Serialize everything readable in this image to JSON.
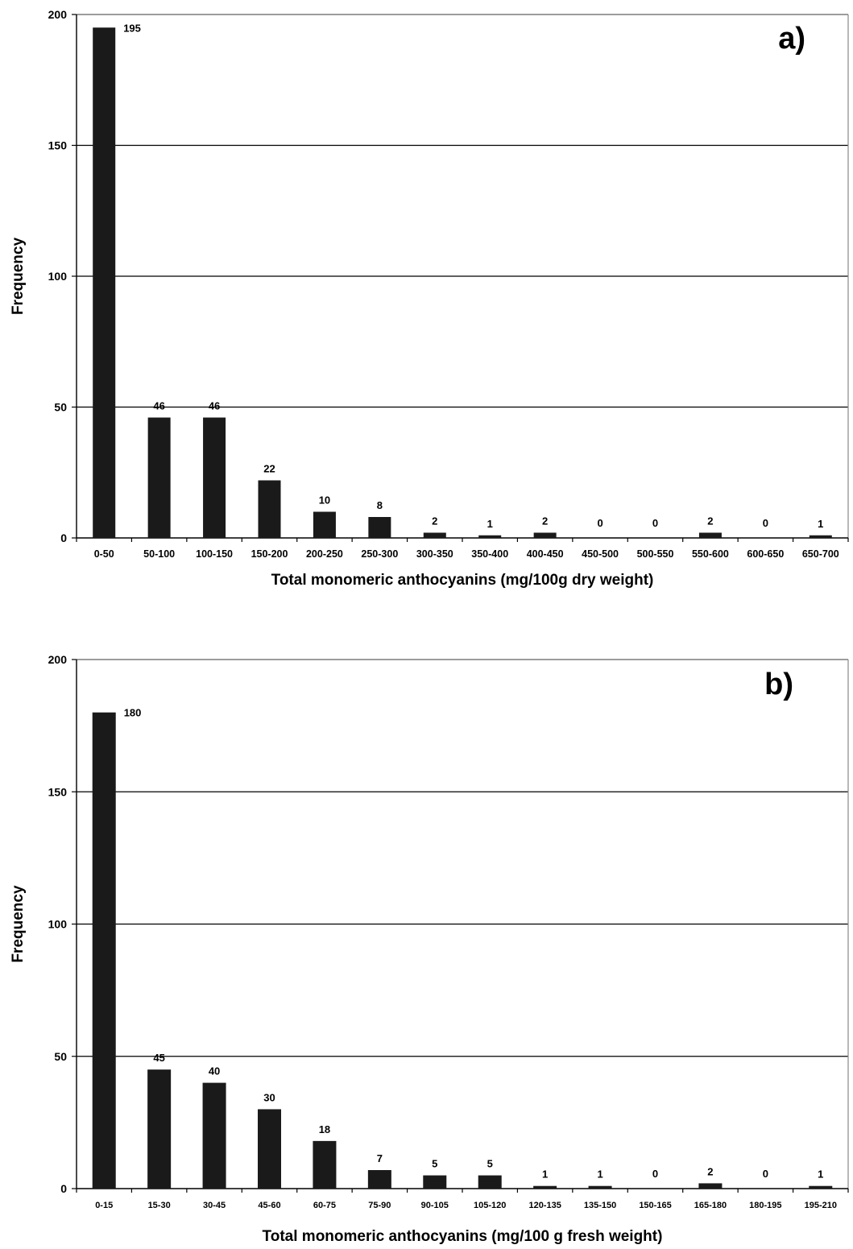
{
  "chart_data": [
    {
      "type": "bar",
      "panel_label": "a)",
      "title": "",
      "xlabel": "Total monomeric anthocyanins (mg/100g dry weight)",
      "ylabel": "Frequency",
      "ylim": [
        0,
        200
      ],
      "yticks": [
        0,
        50,
        100,
        150,
        200
      ],
      "grid": true,
      "bar_color": "#1a1a1a",
      "categories": [
        "0-50",
        "50-100",
        "100-150",
        "150-200",
        "200-250",
        "250-300",
        "300-350",
        "350-400",
        "400-450",
        "450-500",
        "500-550",
        "550-600",
        "600-650",
        "650-700"
      ],
      "values": [
        195,
        46,
        46,
        22,
        10,
        8,
        2,
        1,
        2,
        0,
        0,
        2,
        0,
        1
      ]
    },
    {
      "type": "bar",
      "panel_label": "b)",
      "title": "",
      "xlabel": "Total monomeric anthocyanins (mg/100 g fresh weight)",
      "ylabel": "Frequency",
      "ylim": [
        0,
        200
      ],
      "yticks": [
        0,
        50,
        100,
        150,
        200
      ],
      "grid": true,
      "bar_color": "#1a1a1a",
      "categories": [
        "0-15",
        "15-30",
        "30-45",
        "45-60",
        "60-75",
        "75-90",
        "90-105",
        "105-120",
        "120-135",
        "135-150",
        "150-165",
        "165-180",
        "180-195",
        "195-210"
      ],
      "values": [
        180,
        45,
        40,
        30,
        18,
        7,
        5,
        5,
        1,
        1,
        0,
        2,
        0,
        1
      ]
    }
  ]
}
